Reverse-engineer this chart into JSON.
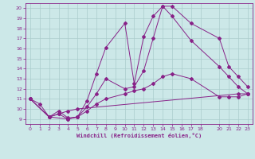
{
  "bg_color": "#cce8e8",
  "grid_color": "#aacccc",
  "line_color": "#882288",
  "xlabel": "Windchill (Refroidissement éolien,°C)",
  "xlim": [
    -0.5,
    23.5
  ],
  "ylim": [
    8.5,
    20.5
  ],
  "xticks": [
    0,
    1,
    2,
    3,
    4,
    5,
    6,
    7,
    8,
    9,
    10,
    11,
    12,
    13,
    14,
    15,
    16,
    17,
    18,
    20,
    21,
    22,
    23
  ],
  "yticks": [
    9,
    10,
    11,
    12,
    13,
    14,
    15,
    16,
    17,
    18,
    19,
    20
  ],
  "line1_x": [
    0,
    1,
    2,
    3,
    4,
    5,
    22,
    23
  ],
  "line1_y": [
    11.0,
    10.5,
    9.2,
    9.5,
    9.8,
    10.0,
    11.5,
    11.5
  ],
  "line2_x": [
    0,
    2,
    3,
    4,
    5,
    6,
    7,
    8,
    10,
    11,
    12,
    13,
    14,
    15,
    17,
    20,
    21,
    22,
    23
  ],
  "line2_y": [
    11.0,
    9.2,
    9.8,
    9.1,
    9.2,
    10.8,
    13.5,
    16.1,
    18.5,
    12.5,
    17.2,
    19.2,
    20.2,
    20.2,
    18.5,
    17.0,
    14.2,
    13.2,
    12.2
  ],
  "line3_x": [
    0,
    2,
    4,
    5,
    6,
    7,
    8,
    10,
    11,
    12,
    13,
    14,
    15,
    17,
    20,
    21,
    22,
    23
  ],
  "line3_y": [
    11.0,
    9.2,
    9.0,
    9.2,
    10.2,
    11.5,
    13.0,
    12.0,
    12.2,
    13.8,
    17.0,
    20.2,
    19.2,
    16.8,
    14.2,
    13.2,
    12.2,
    11.5
  ],
  "line4_x": [
    0,
    2,
    3,
    4,
    5,
    6,
    7,
    8,
    10,
    11,
    12,
    13,
    14,
    15,
    17,
    20,
    21,
    22,
    23
  ],
  "line4_y": [
    11.0,
    9.2,
    9.5,
    9.0,
    9.2,
    9.8,
    10.5,
    11.0,
    11.5,
    11.8,
    12.0,
    12.5,
    13.2,
    13.5,
    13.0,
    11.2,
    11.2,
    11.2,
    11.5
  ]
}
